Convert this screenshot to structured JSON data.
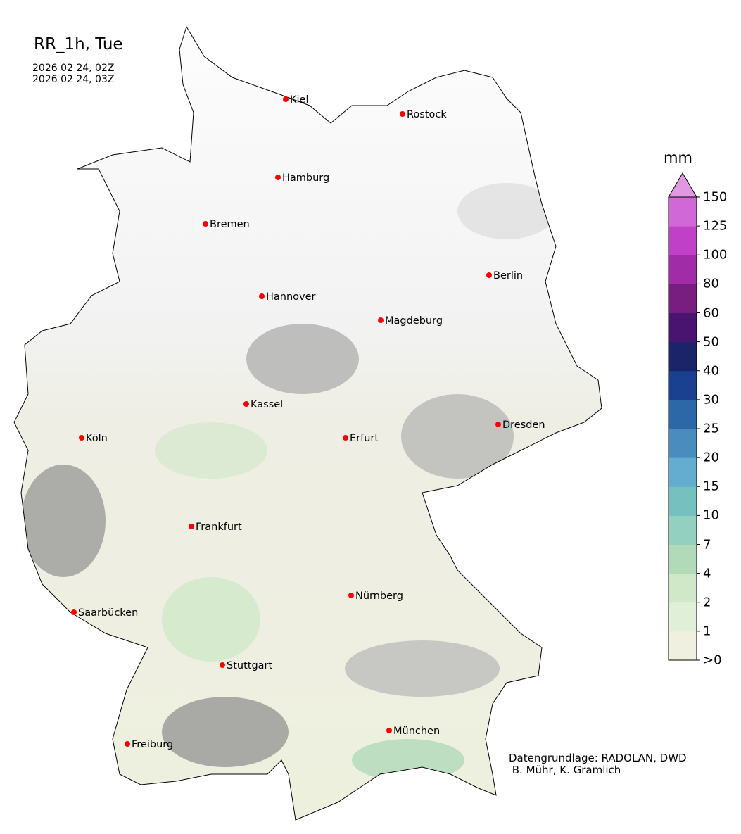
{
  "header": {
    "title": "RR_1h, Tue",
    "time_start": "2026 02 24, 02Z",
    "time_end": "2026 02 24, 03Z"
  },
  "colorbar": {
    "unit": "mm",
    "labels": [
      ">0",
      "1",
      "2",
      "4",
      "7",
      "10",
      "15",
      "20",
      "25",
      "30",
      "40",
      "50",
      "60",
      "80",
      "100",
      "125",
      "150"
    ],
    "colors": [
      "#f0f0e0",
      "#e0f0d8",
      "#d0e8c8",
      "#b0dab8",
      "#94d0c0",
      "#76c0c0",
      "#64acd0",
      "#4a8cbd",
      "#2c68a8",
      "#1a4090",
      "#1a2468",
      "#481470",
      "#781e80",
      "#a02ca8",
      "#c040c8",
      "#d068d8"
    ],
    "extend_color": "#e098e0"
  },
  "cities": [
    {
      "name": "Kiel"
    },
    {
      "name": "Rostock"
    },
    {
      "name": "Hamburg"
    },
    {
      "name": "Bremen"
    },
    {
      "name": "Berlin"
    },
    {
      "name": "Hannover"
    },
    {
      "name": "Magdeburg"
    },
    {
      "name": "Kassel"
    },
    {
      "name": "Köln"
    },
    {
      "name": "Erfurt"
    },
    {
      "name": "Dresden"
    },
    {
      "name": "Frankfurt"
    },
    {
      "name": "Nürnberg"
    },
    {
      "name": "Saarbücken"
    },
    {
      "name": "Stuttgart"
    },
    {
      "name": "München"
    },
    {
      "name": "Freiburg"
    }
  ],
  "credit": {
    "line1": "Datengrundlage: RADOLAN, DWD",
    "line2": " B. Mühr, K. Gramlich"
  },
  "marker_color": "#ff0000"
}
